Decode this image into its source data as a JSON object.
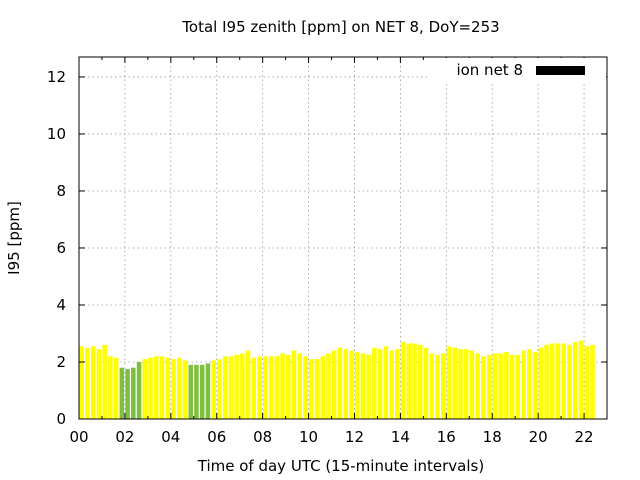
{
  "chart_data": {
    "type": "bar",
    "title": "Total I95 zenith [ppm] on NET 8, DoY=253",
    "xlabel": "Time of day UTC (15-minute intervals)",
    "ylabel": "I95 [ppm]",
    "xlim": [
      0,
      23
    ],
    "ylim": [
      0,
      12.7
    ],
    "x_ticks": [
      "00",
      "02",
      "04",
      "06",
      "08",
      "10",
      "12",
      "14",
      "16",
      "18",
      "20",
      "22"
    ],
    "y_ticks": [
      "0",
      "2",
      "4",
      "6",
      "8",
      "10",
      "12"
    ],
    "grid": true,
    "legend_position": "top-right",
    "series": [
      {
        "name": "ion net 8",
        "legend_color": "#000000",
        "bar_interval_hours": 0.25,
        "bar_color": "#ffff00",
        "highlight_color": "#80c040",
        "values": [
          2.55,
          2.5,
          2.55,
          2.45,
          2.6,
          2.2,
          2.15,
          1.8,
          1.75,
          1.8,
          2.0,
          2.1,
          2.15,
          2.2,
          2.2,
          2.15,
          2.1,
          2.15,
          2.05,
          1.9,
          1.9,
          1.9,
          1.95,
          2.05,
          2.1,
          2.2,
          2.2,
          2.25,
          2.3,
          2.4,
          2.15,
          2.2,
          2.2,
          2.2,
          2.2,
          2.3,
          2.25,
          2.4,
          2.3,
          2.2,
          2.1,
          2.1,
          2.2,
          2.3,
          2.4,
          2.5,
          2.45,
          2.4,
          2.35,
          2.3,
          2.25,
          2.5,
          2.45,
          2.55,
          2.4,
          2.45,
          2.7,
          2.65,
          2.65,
          2.6,
          2.5,
          2.3,
          2.25,
          2.3,
          2.55,
          2.5,
          2.45,
          2.45,
          2.4,
          2.3,
          2.2,
          2.25,
          2.3,
          2.3,
          2.35,
          2.25,
          2.25,
          2.4,
          2.45,
          2.35,
          2.5,
          2.6,
          2.65,
          2.65,
          2.65,
          2.6,
          2.7,
          2.75,
          2.55,
          2.6
        ],
        "highlight_indices": [
          7,
          8,
          9,
          10,
          19,
          20,
          21,
          22
        ]
      }
    ]
  }
}
